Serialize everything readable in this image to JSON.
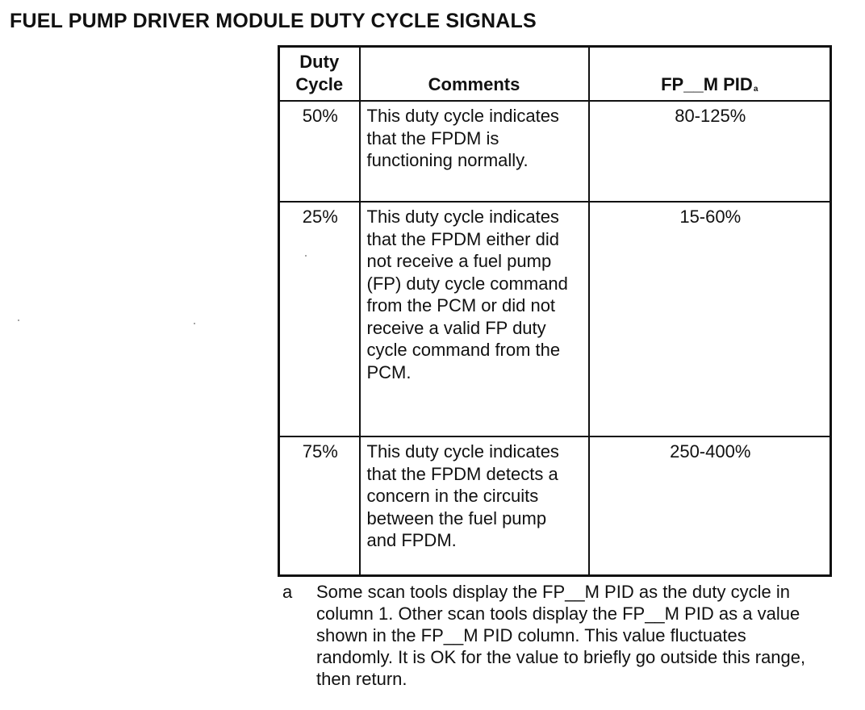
{
  "title": "FUEL PUMP DRIVER MODULE DUTY CYCLE SIGNALS",
  "table": {
    "headers": {
      "duty_cycle": "Duty Cycle",
      "comments": "Comments",
      "pid": "FP__M PID",
      "pid_footnote_mark": "a"
    },
    "rows": [
      {
        "duty_cycle": "50%",
        "comments": "This duty cycle indicates that the FPDM is functioning normally.",
        "pid": "80-125%"
      },
      {
        "duty_cycle": "25%",
        "comments": "This duty cycle indicates that the FPDM either did not receive a fuel pump (FP) duty cycle command from the PCM or did not receive a valid FP duty cycle command from the PCM.",
        "pid": "15-60%"
      },
      {
        "duty_cycle": "75%",
        "comments": "This duty cycle indicates that the FPDM detects a concern in the circuits between the fuel pump and FPDM.",
        "pid": "250-400%"
      }
    ]
  },
  "footnote": {
    "letter": "a",
    "text": "Some scan tools display the FP__M PID as the duty cycle in column 1. Other scan tools display the FP__M PID as a value shown in the FP__M PID column. This value fluctuates randomly. It is OK for the value to briefly go outside this range, then return."
  }
}
